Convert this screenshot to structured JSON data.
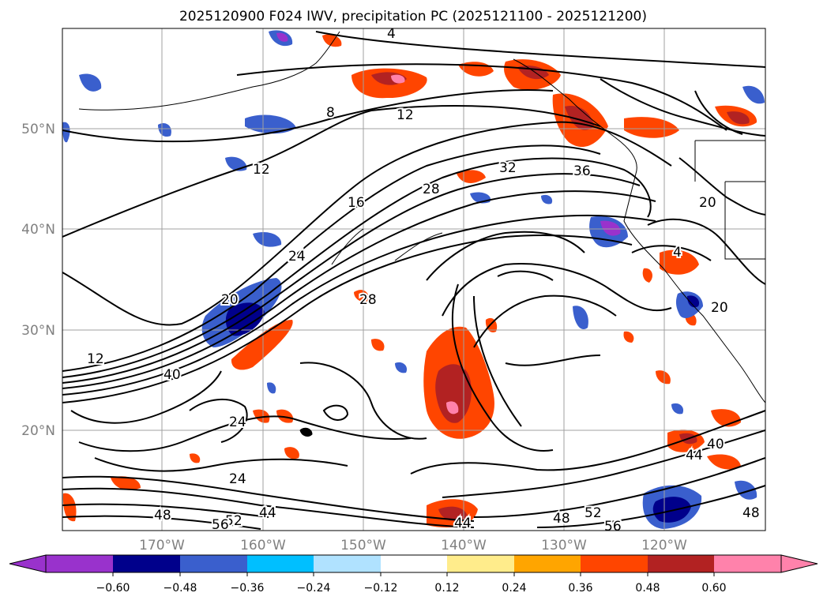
{
  "title": "2025120900 F024 IWV, precipitation PC (2025121100 - 2025121200)",
  "lat_labels": [
    "50°N",
    "40°N",
    "30°N",
    "20°N"
  ],
  "lon_labels": [
    "170°W",
    "160°W",
    "150°W",
    "140°W",
    "130°W",
    "120°W"
  ],
  "contour_labels": [
    {
      "text": "4"
    },
    {
      "text": "8"
    },
    {
      "text": "12"
    },
    {
      "text": "12"
    },
    {
      "text": "16"
    },
    {
      "text": "24"
    },
    {
      "text": "28"
    },
    {
      "text": "32"
    },
    {
      "text": "36"
    },
    {
      "text": "20"
    },
    {
      "text": "20"
    },
    {
      "text": "20"
    },
    {
      "text": "4"
    },
    {
      "text": "12"
    },
    {
      "text": "40"
    },
    {
      "text": "24"
    },
    {
      "text": "24"
    },
    {
      "text": "48"
    },
    {
      "text": "52"
    },
    {
      "text": "44"
    },
    {
      "text": "56"
    },
    {
      "text": "48"
    },
    {
      "text": "52"
    },
    {
      "text": "56"
    },
    {
      "text": "44"
    },
    {
      "text": "40"
    },
    {
      "text": "44"
    },
    {
      "text": "48"
    },
    {
      "text": "28"
    }
  ],
  "colorbar": {
    "tick_labels": [
      "−0.60",
      "−0.48",
      "−0.36",
      "−0.24",
      "−0.12",
      "0.12",
      "0.24",
      "0.36",
      "0.48",
      "0.60"
    ],
    "colors": [
      "#9932cc",
      "#00008b",
      "#3a5fcd",
      "#00bfff",
      "#b0e2ff",
      "#ffffff",
      "#ffec8b",
      "#ffa500",
      "#ff4500",
      "#b22222",
      "#ff82ab"
    ]
  },
  "colors": {
    "contour": "#000000",
    "grid": "#a0a0a0",
    "axis_label": "#808080",
    "coast": "#000000"
  }
}
